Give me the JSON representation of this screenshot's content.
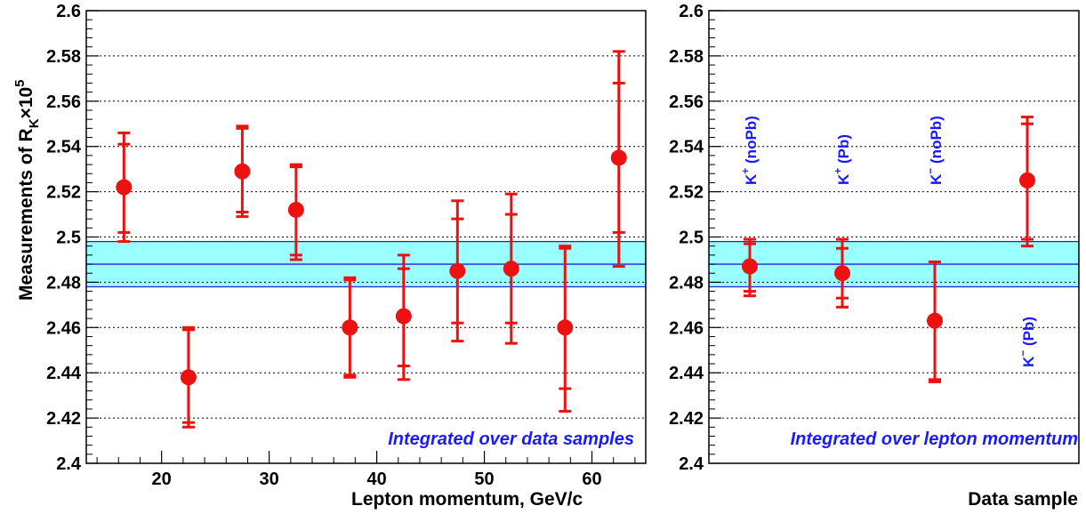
{
  "chart_data": [
    {
      "type": "scatter",
      "panel": "left",
      "xlabel": "Lepton momentum, GeV/c",
      "ylabel": {
        "prefix": "Measurements of R",
        "sub": "K",
        "mid": "×10",
        "sup": "5"
      },
      "annotation": "Integrated over data samples",
      "xlim": [
        13,
        65
      ],
      "ylim": [
        2.4,
        2.6
      ],
      "xticks": [
        20,
        30,
        40,
        50,
        60
      ],
      "xtick_labels": [
        "20",
        "30",
        "40",
        "50",
        "60"
      ],
      "yticks": [
        2.4,
        2.42,
        2.44,
        2.46,
        2.48,
        2.5,
        2.52,
        2.54,
        2.56,
        2.58,
        2.6
      ],
      "ytick_labels": [
        "2.4",
        "2.42",
        "2.44",
        "2.46",
        "2.48",
        "2.5",
        "2.52",
        "2.54",
        "2.56",
        "2.58",
        "2.6"
      ],
      "grid": "horizontal dotted",
      "band": {
        "center": 2.488,
        "low": 2.478,
        "high": 2.498,
        "fill": "#99ffff",
        "line": "#2222cc"
      },
      "marker_color": "#ee1111",
      "points": [
        {
          "x": 16.5,
          "y": 2.522,
          "stat": [
            2.502,
            2.541
          ],
          "tot": [
            2.498,
            2.546
          ]
        },
        {
          "x": 22.5,
          "y": 2.438,
          "stat": [
            2.418,
            2.459
          ],
          "tot": [
            2.416,
            2.46
          ]
        },
        {
          "x": 27.5,
          "y": 2.529,
          "stat": [
            2.511,
            2.548
          ],
          "tot": [
            2.509,
            2.549
          ]
        },
        {
          "x": 32.5,
          "y": 2.512,
          "stat": [
            2.492,
            2.531
          ],
          "tot": [
            2.49,
            2.532
          ]
        },
        {
          "x": 37.5,
          "y": 2.46,
          "stat": [
            2.439,
            2.481
          ],
          "tot": [
            2.438,
            2.482
          ]
        },
        {
          "x": 42.5,
          "y": 2.465,
          "stat": [
            2.443,
            2.486
          ],
          "tot": [
            2.437,
            2.492
          ]
        },
        {
          "x": 47.5,
          "y": 2.485,
          "stat": [
            2.462,
            2.508
          ],
          "tot": [
            2.454,
            2.516
          ]
        },
        {
          "x": 52.5,
          "y": 2.486,
          "stat": [
            2.462,
            2.51
          ],
          "tot": [
            2.453,
            2.519
          ]
        },
        {
          "x": 57.5,
          "y": 2.46,
          "stat": [
            2.433,
            2.495
          ],
          "tot": [
            2.423,
            2.496
          ]
        },
        {
          "x": 62.5,
          "y": 2.535,
          "stat": [
            2.502,
            2.568
          ],
          "tot": [
            2.487,
            2.582
          ]
        }
      ]
    },
    {
      "type": "scatter",
      "panel": "right",
      "xlabel": "Data sample",
      "annotation": "Integrated over lepton momentum",
      "ylim": [
        2.4,
        2.6
      ],
      "yticks": [
        2.4,
        2.42,
        2.44,
        2.46,
        2.48,
        2.5,
        2.52,
        2.54,
        2.56,
        2.58,
        2.6
      ],
      "ytick_labels": [
        "2.4",
        "2.42",
        "2.44",
        "2.46",
        "2.48",
        "2.5",
        "2.52",
        "2.54",
        "2.56",
        "2.58",
        "2.6"
      ],
      "grid": "horizontal dotted",
      "band": {
        "center": 2.488,
        "low": 2.478,
        "high": 2.498,
        "fill": "#99ffff",
        "line": "#2222cc"
      },
      "marker_color": "#ee1111",
      "categories": [
        {
          "base": "K",
          "sup": "+",
          "tag": " (noPb)",
          "y": 2.487,
          "stat": [
            2.476,
            2.497
          ],
          "tot": [
            2.474,
            2.499
          ],
          "label_pos": "above"
        },
        {
          "base": "K",
          "sup": "+",
          "tag": " (Pb)",
          "y": 2.484,
          "stat": [
            2.473,
            2.495
          ],
          "tot": [
            2.469,
            2.499
          ],
          "label_pos": "above"
        },
        {
          "base": "K",
          "sup": "−",
          "tag": " (noPb)",
          "y": 2.463,
          "stat": [
            2.437,
            2.489
          ],
          "tot": [
            2.436,
            2.489
          ],
          "label_pos": "above"
        },
        {
          "base": "K",
          "sup": "−",
          "tag": " (Pb)",
          "y": 2.525,
          "stat": [
            2.499,
            2.55
          ],
          "tot": [
            2.496,
            2.553
          ],
          "label_pos": "below"
        }
      ]
    }
  ]
}
